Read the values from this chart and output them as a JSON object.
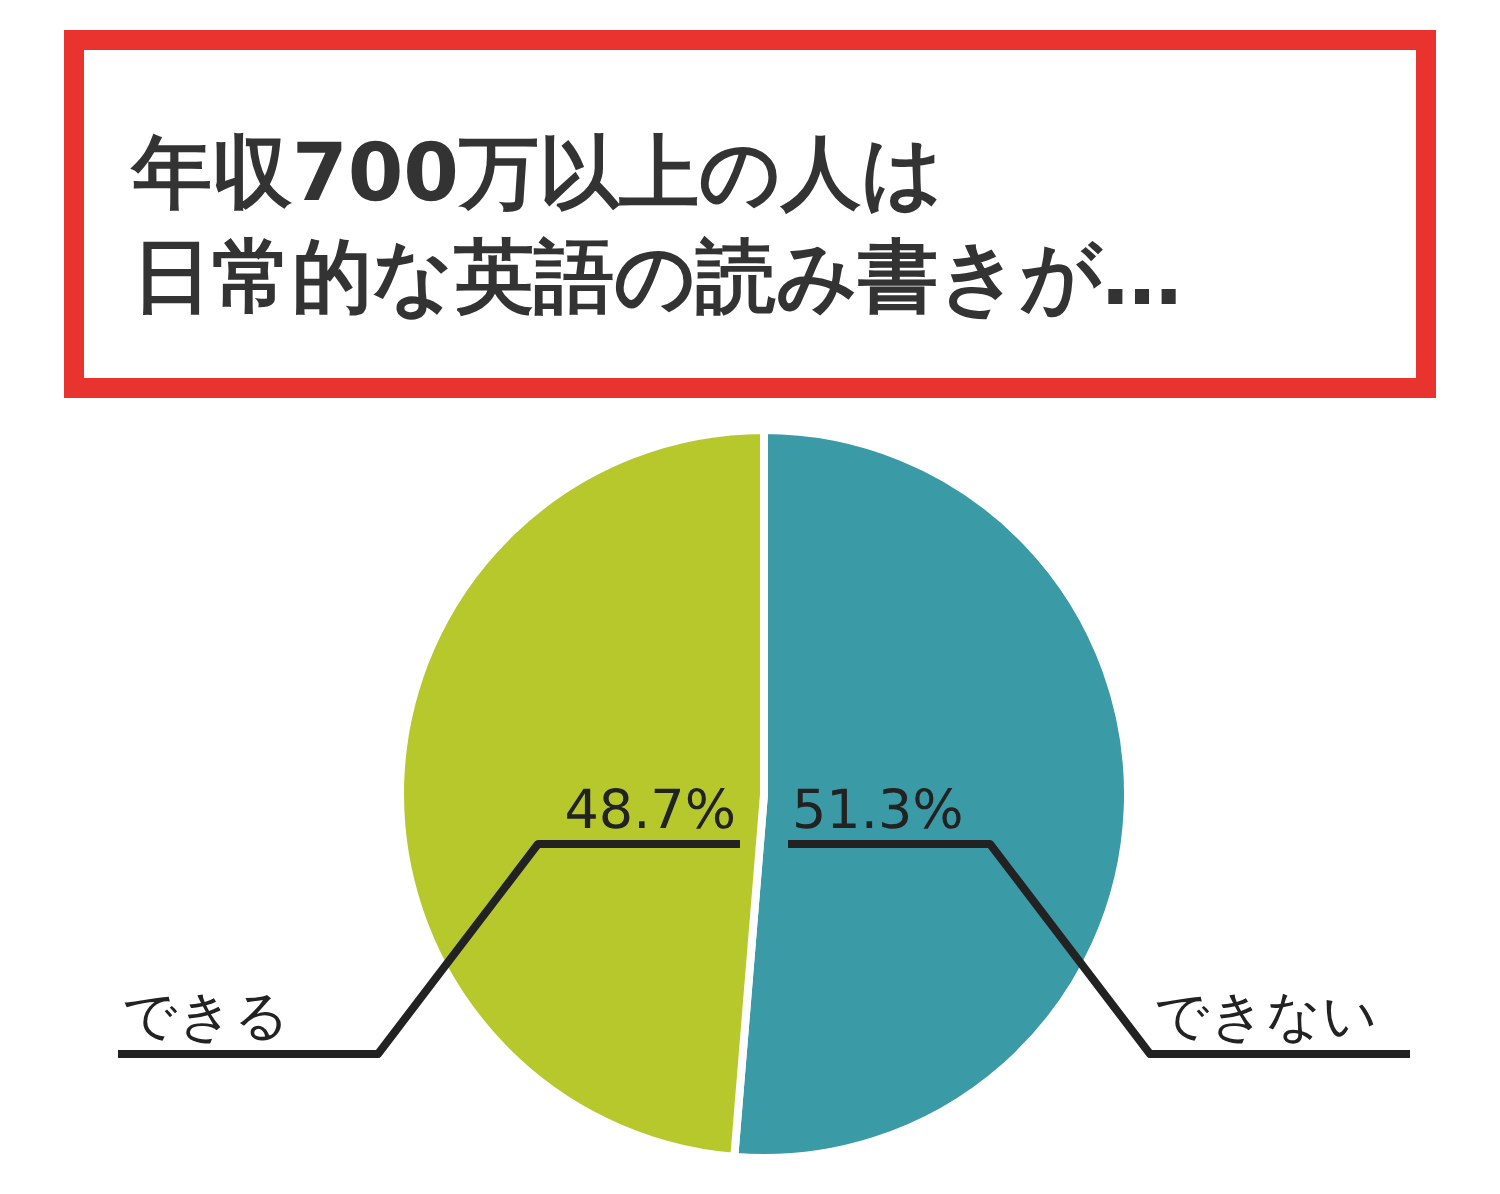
{
  "chart_data": {
    "type": "pie",
    "title": "年収700万以上の人は",
    "subtitle": "日常的な英語の読み書きが…",
    "categories": [
      "できない",
      "できる"
    ],
    "values": [
      51.3,
      48.7
    ],
    "value_labels": [
      "51.3%",
      "48.7%"
    ],
    "colors": [
      "#3a9aa6",
      "#b7c82c"
    ]
  }
}
